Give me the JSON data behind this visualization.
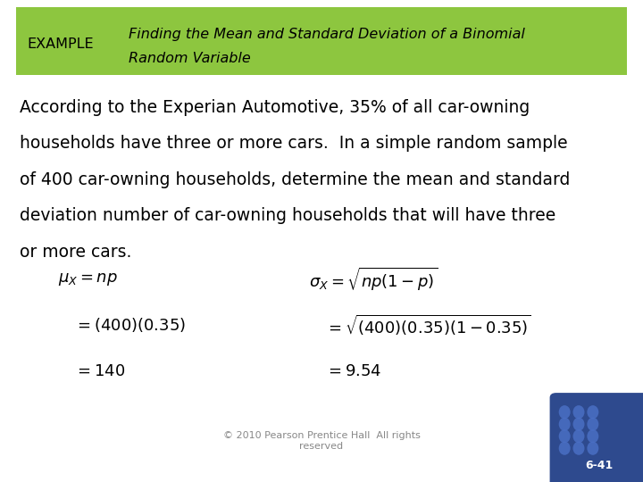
{
  "header_bg_color": "#8DC63F",
  "header_label": "EXAMPLE",
  "header_title_line1": "Finding the Mean and Standard Deviation of a Binomial",
  "header_title_line2": "Random Variable",
  "body_text_line1": "According to the Experian Automotive, 35% of all car-owning",
  "body_text_line2": "households have three or more cars.  In a simple random sample",
  "body_text_line3": "of 400 car-owning households, determine the mean and standard",
  "body_text_line4": "deviation number of car-owning households that will have three",
  "body_text_line5": "or more cars.",
  "footer_text": "© 2010 Pearson Prentice Hall  All rights\nreserved",
  "footer_badge": "6-41",
  "badge_color": "#2E4A8E",
  "dot_color": "#4A6FC4",
  "text_color": "#000000",
  "gray_text": "#888888",
  "white": "#ffffff",
  "header_font_size": 11.5,
  "body_font_size": 13.5,
  "label_font_size": 11.5,
  "math_font_size": 13,
  "footer_font_size": 8,
  "badge_font_size": 9
}
